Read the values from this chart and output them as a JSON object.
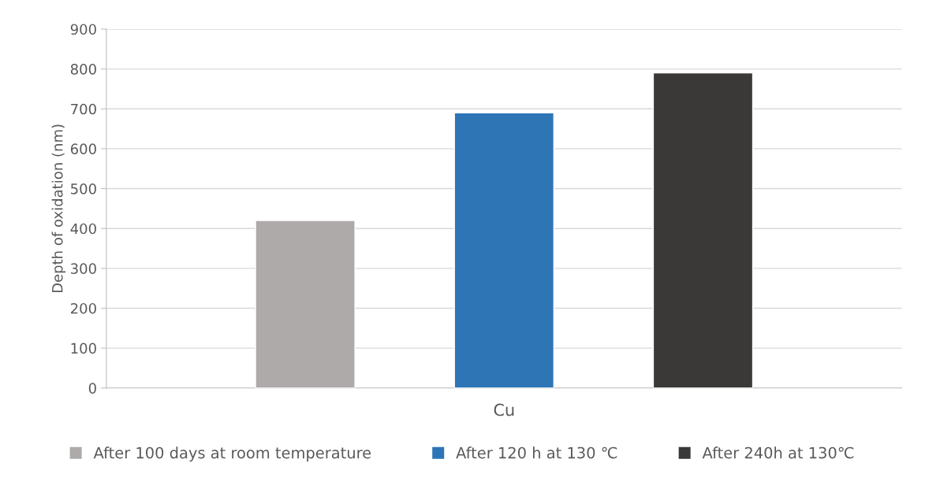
{
  "chart_data": {
    "type": "bar",
    "ylabel": "Depth of oxidation (nm)",
    "categories": [
      "Cu"
    ],
    "series": [
      {
        "name": "After 100 days at room temperature",
        "color": "#aeaaaa",
        "values": [
          420
        ]
      },
      {
        "name": "After 120 h at 130 ℃",
        "color": "#2e75b6",
        "values": [
          690
        ]
      },
      {
        "name": "After 240h at 130℃",
        "color": "#3a3938",
        "values": [
          790
        ]
      }
    ],
    "ylim": [
      0,
      900
    ],
    "yticks": [
      0,
      100,
      200,
      300,
      400,
      500,
      600,
      700,
      800,
      900
    ],
    "grid": "y",
    "legend": "bottom"
  }
}
